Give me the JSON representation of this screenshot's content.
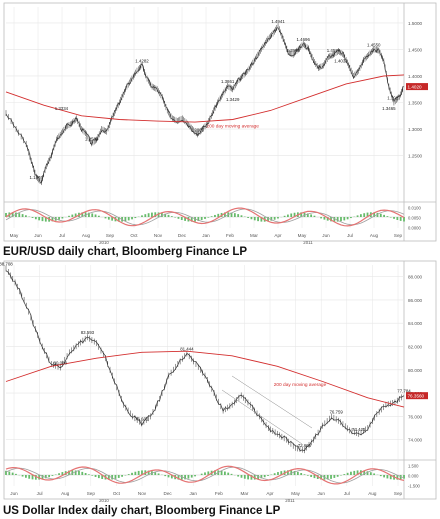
{
  "colors": {
    "price": "#333333",
    "moving_average": "#d32f2f",
    "oscillator_fast": "#e57373",
    "oscillator_slow": "#9e9e9e",
    "histogram": "#66bb6a",
    "last_price_tag": "#c62828",
    "grid": "#e6e6e6",
    "frame": "#bdbdbd"
  },
  "captions": {
    "eurusd": "EUR/USD daily chart, Bloomberg Finance LP",
    "dxy": "US Dollar Index daily chart, Bloomberg Finance LP"
  },
  "chart_data": [
    {
      "type": "line",
      "y_axis_labels": [
        "1.5000",
        "1.4500",
        "1.4000",
        "1.3500",
        "1.3000",
        "1.2500"
      ],
      "ylim": [
        1.17,
        1.53
      ],
      "x_axis_labels": [
        "May",
        "Jun",
        "Jul",
        "Aug",
        "Sep",
        "Oct",
        "Nov",
        "Dec",
        "Jan",
        "Feb",
        "Mar",
        "Apr",
        "May",
        "Jun",
        "Jul",
        "Aug",
        "Sep"
      ],
      "year_labels": [
        "2010",
        "2011"
      ],
      "indicator_y_labels": [
        "0.0100",
        "0.0050",
        "0.0000"
      ],
      "grid": true,
      "series": [
        {
          "points": [
            [
              0,
              1.33
            ],
            [
              4,
              1.3
            ],
            [
              8,
              1.272
            ],
            [
              10,
              1.24
            ],
            [
              12,
              1.21
            ],
            [
              14,
              1.2
            ],
            [
              16,
              1.23
            ],
            [
              18,
              1.25
            ],
            [
              20,
              1.28
            ],
            [
              22,
              1.292
            ],
            [
              24,
              1.305
            ],
            [
              26,
              1.31
            ],
            [
              28,
              1.32
            ],
            [
              30,
              1.3
            ],
            [
              32,
              1.29
            ],
            [
              34,
              1.273
            ],
            [
              36,
              1.28
            ],
            [
              38,
              1.3
            ],
            [
              40,
              1.295
            ],
            [
              42,
              1.32
            ],
            [
              44,
              1.34
            ],
            [
              46,
              1.36
            ],
            [
              48,
              1.38
            ],
            [
              50,
              1.395
            ],
            [
              52,
              1.41
            ],
            [
              54,
              1.42
            ],
            [
              56,
              1.395
            ],
            [
              58,
              1.38
            ],
            [
              60,
              1.375
            ],
            [
              62,
              1.36
            ],
            [
              64,
              1.335
            ],
            [
              66,
              1.32
            ],
            [
              68,
              1.315
            ],
            [
              70,
              1.32
            ],
            [
              72,
              1.31
            ],
            [
              74,
              1.3
            ],
            [
              76,
              1.29
            ],
            [
              78,
              1.3
            ],
            [
              80,
              1.31
            ],
            [
              82,
              1.33
            ],
            [
              84,
              1.35
            ],
            [
              86,
              1.365
            ],
            [
              88,
              1.381
            ],
            [
              90,
              1.375
            ],
            [
              92,
              1.39
            ],
            [
              94,
              1.4
            ],
            [
              96,
              1.41
            ],
            [
              98,
              1.425
            ],
            [
              100,
              1.44
            ],
            [
              102,
              1.455
            ],
            [
              104,
              1.47
            ],
            [
              106,
              1.48
            ],
            [
              108,
              1.494
            ],
            [
              110,
              1.47
            ],
            [
              112,
              1.445
            ],
            [
              114,
              1.44
            ],
            [
              116,
              1.45
            ],
            [
              118,
              1.46
            ],
            [
              120,
              1.452
            ],
            [
              122,
              1.43
            ],
            [
              124,
              1.415
            ],
            [
              126,
              1.42
            ],
            [
              128,
              1.436
            ],
            [
              130,
              1.44
            ],
            [
              132,
              1.447
            ],
            [
              134,
              1.44
            ],
            [
              136,
              1.42
            ],
            [
              138,
              1.4
            ],
            [
              140,
              1.41
            ],
            [
              142,
              1.43
            ],
            [
              144,
              1.44
            ],
            [
              146,
              1.45
            ],
            [
              148,
              1.448
            ],
            [
              150,
              1.428
            ],
            [
              152,
              1.38
            ],
            [
              154,
              1.35
            ],
            [
              156,
              1.36
            ],
            [
              158,
              1.38
            ]
          ]
        },
        {
          "name": "200 day moving average",
          "points": [
            [
              0,
              1.37
            ],
            [
              15,
              1.345
            ],
            [
              30,
              1.325
            ],
            [
              45,
              1.318
            ],
            [
              60,
              1.315
            ],
            [
              75,
              1.313
            ],
            [
              90,
              1.318
            ],
            [
              105,
              1.335
            ],
            [
              120,
              1.36
            ],
            [
              135,
              1.385
            ],
            [
              150,
              1.4
            ],
            [
              158,
              1.402
            ]
          ]
        }
      ],
      "annotations": [
        {
          "label": "1.1876",
          "x": 12,
          "y": 1.2
        },
        {
          "label": "1.2588",
          "x": 34,
          "y": 1.273
        },
        {
          "label": "1.3334",
          "x": 22,
          "y": 1.33
        },
        {
          "label": "1.4282",
          "x": 54,
          "y": 1.42
        },
        {
          "label": "1.2860",
          "x": 76,
          "y": 1.29
        },
        {
          "label": "1.3861",
          "x": 88,
          "y": 1.381
        },
        {
          "label": "1.3429",
          "x": 90,
          "y": 1.347
        },
        {
          "label": "1.4941",
          "x": 108,
          "y": 1.494
        },
        {
          "label": "1.3968",
          "x": 114,
          "y": 1.44
        },
        {
          "label": "1.4696",
          "x": 118,
          "y": 1.46
        },
        {
          "label": "1.4526",
          "x": 130,
          "y": 1.44
        },
        {
          "label": "1.4038",
          "x": 133,
          "y": 1.42
        },
        {
          "label": "1.4550",
          "x": 146,
          "y": 1.45
        },
        {
          "label": "1.3937",
          "x": 154,
          "y": 1.35
        },
        {
          "label": "1.3465",
          "x": 152,
          "y": 1.33
        },
        {
          "label": "200 day moving average",
          "x": 90,
          "y": 1.318
        }
      ],
      "last_value_label": "1.4020"
    },
    {
      "type": "line",
      "y_axis_labels": [
        "88.000",
        "86.000",
        "84.000",
        "82.000",
        "80.000",
        "78.000",
        "76.000",
        "74.000"
      ],
      "ylim": [
        72.6,
        89.0
      ],
      "x_axis_labels": [
        "Jun",
        "Jul",
        "Aug",
        "Sep",
        "Oct",
        "Nov",
        "Dec",
        "Jan",
        "Feb",
        "Mar",
        "Apr",
        "May",
        "Jun",
        "Jul",
        "Aug",
        "Sep"
      ],
      "year_labels": [
        "2010",
        "2011"
      ],
      "indicator_y_labels": [
        "1.500",
        "0.000",
        "-1.500"
      ],
      "grid": true,
      "series": [
        {
          "points": [
            [
              0,
              88.7
            ],
            [
              4,
              87.5
            ],
            [
              8,
              86.0
            ],
            [
              12,
              84.0
            ],
            [
              16,
              82.0
            ],
            [
              20,
              80.5
            ],
            [
              24,
              80.2
            ],
            [
              28,
              81.5
            ],
            [
              32,
              82.2
            ],
            [
              36,
              82.8
            ],
            [
              40,
              82.3
            ],
            [
              44,
              81.0
            ],
            [
              48,
              79.0
            ],
            [
              52,
              77.0
            ],
            [
              56,
              76.0
            ],
            [
              60,
              75.4
            ],
            [
              64,
              76.0
            ],
            [
              68,
              77.5
            ],
            [
              72,
              79.5
            ],
            [
              76,
              80.5
            ],
            [
              80,
              81.4
            ],
            [
              84,
              80.5
            ],
            [
              88,
              79.5
            ],
            [
              92,
              78.0
            ],
            [
              96,
              76.5
            ],
            [
              100,
              77.0
            ],
            [
              104,
              77.8
            ],
            [
              108,
              77.0
            ],
            [
              112,
              76.0
            ],
            [
              116,
              75.0
            ],
            [
              120,
              74.5
            ],
            [
              124,
              74.0
            ],
            [
              128,
              73.3
            ],
            [
              132,
              73.1
            ],
            [
              136,
              74.0
            ],
            [
              140,
              75.2
            ],
            [
              144,
              76.0
            ],
            [
              148,
              75.5
            ],
            [
              152,
              74.8
            ],
            [
              156,
              74.5
            ],
            [
              160,
              75.0
            ],
            [
              164,
              76.2
            ],
            [
              168,
              77.0
            ],
            [
              172,
              77.2
            ],
            [
              176,
              77.78
            ]
          ]
        },
        {
          "name": "200 day moving average",
          "points": [
            [
              0,
              79.0
            ],
            [
              20,
              80.3
            ],
            [
              40,
              81.0
            ],
            [
              60,
              81.5
            ],
            [
              80,
              81.6
            ],
            [
              100,
              81.2
            ],
            [
              120,
              80.3
            ],
            [
              140,
              79.0
            ],
            [
              160,
              77.6
            ],
            [
              176,
              76.8
            ]
          ]
        }
      ],
      "annotations": [
        {
          "label": "88.708",
          "x": 0,
          "y": 88.7
        },
        {
          "label": "80.088",
          "x": 24,
          "y": 80.2
        },
        {
          "label": "83.593",
          "x": 36,
          "y": 82.8
        },
        {
          "label": "75.631",
          "x": 60,
          "y": 75.4
        },
        {
          "label": "81.444",
          "x": 80,
          "y": 81.4
        },
        {
          "label": "72.696",
          "x": 132,
          "y": 73.1
        },
        {
          "label": "76.759",
          "x": 146,
          "y": 76.0
        },
        {
          "label": "73.421",
          "x": 156,
          "y": 74.5
        },
        {
          "label": "77.784",
          "x": 176,
          "y": 77.78
        },
        {
          "label": "200 day moving average",
          "x": 130,
          "y": 79.3
        }
      ],
      "last_value_label": "76.3560"
    }
  ]
}
